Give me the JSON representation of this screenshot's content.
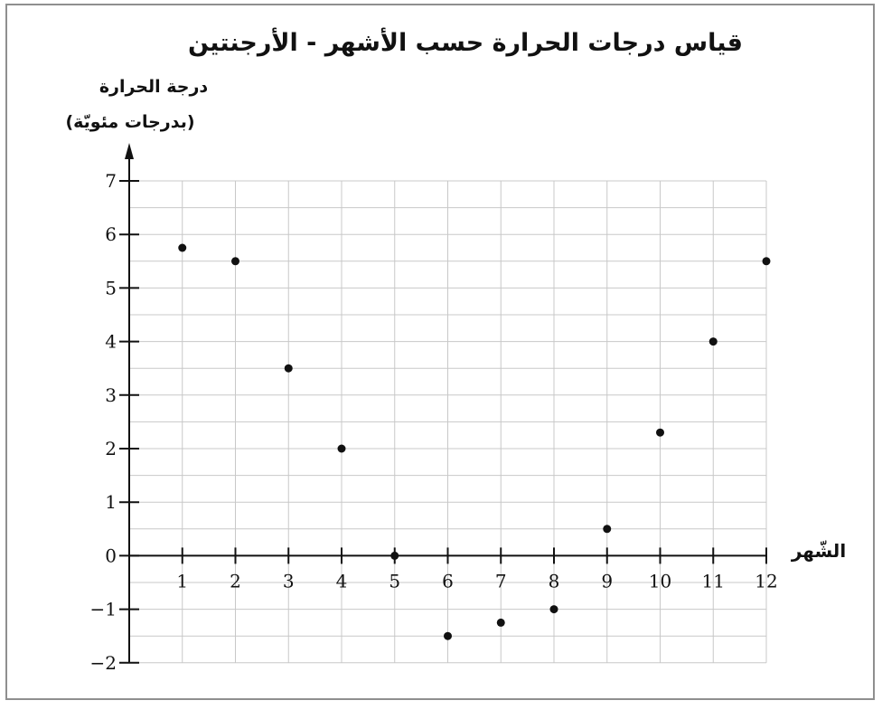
{
  "chart_data": {
    "type": "scatter",
    "title": "قياس درجات الحرارة حسب الأشهر - الأرجنتين",
    "xlabel": "الشّهر",
    "ylabel_line1": "درجة الحرارة",
    "ylabel_line2": "(بدرجات مئويّة)",
    "x": [
      1,
      2,
      3,
      4,
      5,
      6,
      7,
      8,
      9,
      10,
      11,
      12
    ],
    "y": [
      5.75,
      5.5,
      3.5,
      2,
      0,
      -1.5,
      -1.25,
      -1,
      0.5,
      2.3,
      4,
      5.5
    ],
    "xlim": [
      0,
      12
    ],
    "ylim": [
      -2,
      7
    ],
    "x_ticks": [
      "1",
      "2",
      "3",
      "4",
      "5",
      "6",
      "7",
      "8",
      "9",
      "10",
      "11",
      "12"
    ],
    "y_ticks": [
      "7",
      "6",
      "5",
      "4",
      "3",
      "2",
      "1",
      "0",
      "−1",
      "−2"
    ],
    "grid": true,
    "point_color": "#111111",
    "grid_color": "#c8c8c8"
  }
}
